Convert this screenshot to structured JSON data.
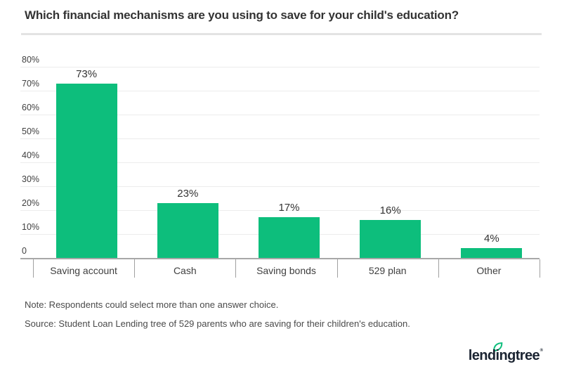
{
  "header": {
    "title": "Which financial mechanisms are you using to save for your child's education?"
  },
  "chart_data": {
    "type": "bar",
    "title": "Which financial mechanisms are you using to save for your child's education?",
    "categories": [
      "Saving account",
      "Cash",
      "Saving bonds",
      "529 plan",
      "Other"
    ],
    "values": [
      73,
      23,
      17,
      16,
      4
    ],
    "value_labels": [
      "73%",
      "23%",
      "17%",
      "16%",
      "4%"
    ],
    "y_ticks": [
      "80%",
      "70%",
      "60%",
      "50%",
      "40%",
      "30%",
      "20%",
      "10%",
      "0"
    ],
    "y_tick_values": [
      80,
      70,
      60,
      50,
      40,
      30,
      20,
      10,
      0
    ],
    "ylim": [
      0,
      80
    ],
    "xlabel": "",
    "ylabel": "",
    "grid": true,
    "legend": "none",
    "bar_color": "#0dbe7c",
    "gridline_color": "#ececec",
    "axis_color": "#a8a8a8"
  },
  "notes": {
    "note": "Note: Respondents could select more than one answer choice.",
    "source": "Source: Student Loan Lending tree of 529 parents who are saving for their children's education."
  },
  "footer": {
    "logo_text": "lendingtree",
    "logo_trademark": "®",
    "logo_color": "#1b2432",
    "leaf_color": "#0dbe7c"
  }
}
